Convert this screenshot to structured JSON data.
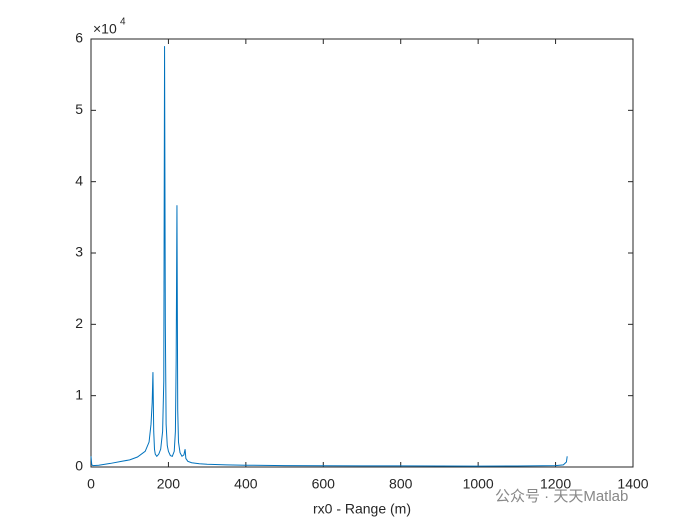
{
  "chart_data": {
    "type": "line",
    "x_label": "rx0 - Range (m)",
    "y_scale_label": {
      "base": "×10",
      "exponent": "4"
    },
    "watermark": "公众号 · 天天Matlab",
    "x": [
      0,
      2,
      5,
      20,
      50,
      80,
      100,
      120,
      140,
      150,
      155,
      158,
      160,
      162,
      164,
      166,
      170,
      175,
      180,
      185,
      188,
      190,
      192,
      194,
      197,
      200,
      205,
      210,
      215,
      218,
      220,
      222,
      224,
      226,
      230,
      235,
      240,
      243,
      245,
      250,
      260,
      280,
      300,
      350,
      400,
      500,
      600,
      700,
      800,
      900,
      1000,
      1100,
      1200,
      1220,
      1228,
      1230
    ],
    "series": [
      {
        "name": "rx0",
        "color": "#0072bd",
        "values": [
          1500,
          300,
          200,
          250,
          500,
          800,
          1000,
          1400,
          2200,
          3500,
          6000,
          9000,
          13300,
          5000,
          2500,
          1800,
          1500,
          1800,
          2500,
          5000,
          12000,
          59000,
          20000,
          6000,
          3000,
          2200,
          1600,
          1500,
          2200,
          5000,
          15000,
          36700,
          8000,
          3500,
          2000,
          1500,
          1700,
          2500,
          1200,
          800,
          600,
          450,
          380,
          300,
          250,
          200,
          180,
          160,
          150,
          140,
          130,
          140,
          200,
          300,
          700,
          1500
        ]
      }
    ],
    "xlim": [
      0,
      1400
    ],
    "xticks": [
      0,
      200,
      400,
      600,
      800,
      1000,
      1200,
      1400
    ],
    "ylim": [
      0,
      60000
    ],
    "yticks": [
      {
        "value": 0,
        "label": "0"
      },
      {
        "value": 10000,
        "label": "1"
      },
      {
        "value": 20000,
        "label": "2"
      },
      {
        "value": 30000,
        "label": "3"
      },
      {
        "value": 40000,
        "label": "4"
      },
      {
        "value": 50000,
        "label": "5"
      },
      {
        "value": 60000,
        "label": "6"
      }
    ],
    "grid": false
  }
}
